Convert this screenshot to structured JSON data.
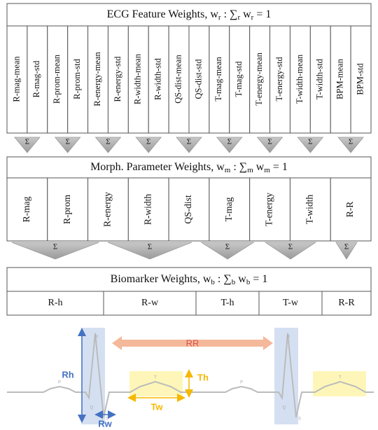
{
  "feature_panel": {
    "title": [
      "ECG Feature Weights, w",
      "r",
      " :  ∑",
      "r",
      " w",
      "r",
      " = 1"
    ],
    "features": [
      "R-mag-mean",
      "R-mag-std",
      "R-prom-mean",
      "R-prom-std",
      "R-energy-mean",
      "R-energy-std",
      "R-width-mean",
      "R-width-std",
      "QS-dist-mean",
      "QS-dist-std",
      "T-mag-mean",
      "T-mag-std",
      "T-energy-mean",
      "T-energy-std",
      "T-width-mean",
      "T-width-std",
      "BPM-mean",
      "BPM-std"
    ]
  },
  "sigma": "Σ",
  "morph_panel": {
    "title": [
      "Morph. Parameter Weights, w",
      "m",
      " :  ∑",
      "m",
      " w",
      "m",
      " = 1"
    ],
    "parameters": [
      "R-mag",
      "R-prom",
      "R-energy",
      "R-width",
      "QS-dist",
      "T-mag",
      "T-energy",
      "T-width",
      "R-R"
    ]
  },
  "biomarker_panel": {
    "title": [
      "Biomarker Weights, w",
      "b",
      " :  ∑",
      "b",
      " w",
      "b",
      " = 1"
    ],
    "biomarkers": [
      "R-h",
      "R-w",
      "T-h",
      "T-w",
      "R-R"
    ]
  },
  "ecg": {
    "rh": "Rh",
    "rr": "RR",
    "th": "Th",
    "tw": "Tw",
    "rw": "Rw",
    "p": "P",
    "r": "R",
    "q": "Q",
    "s": "S",
    "t": "T"
  }
}
